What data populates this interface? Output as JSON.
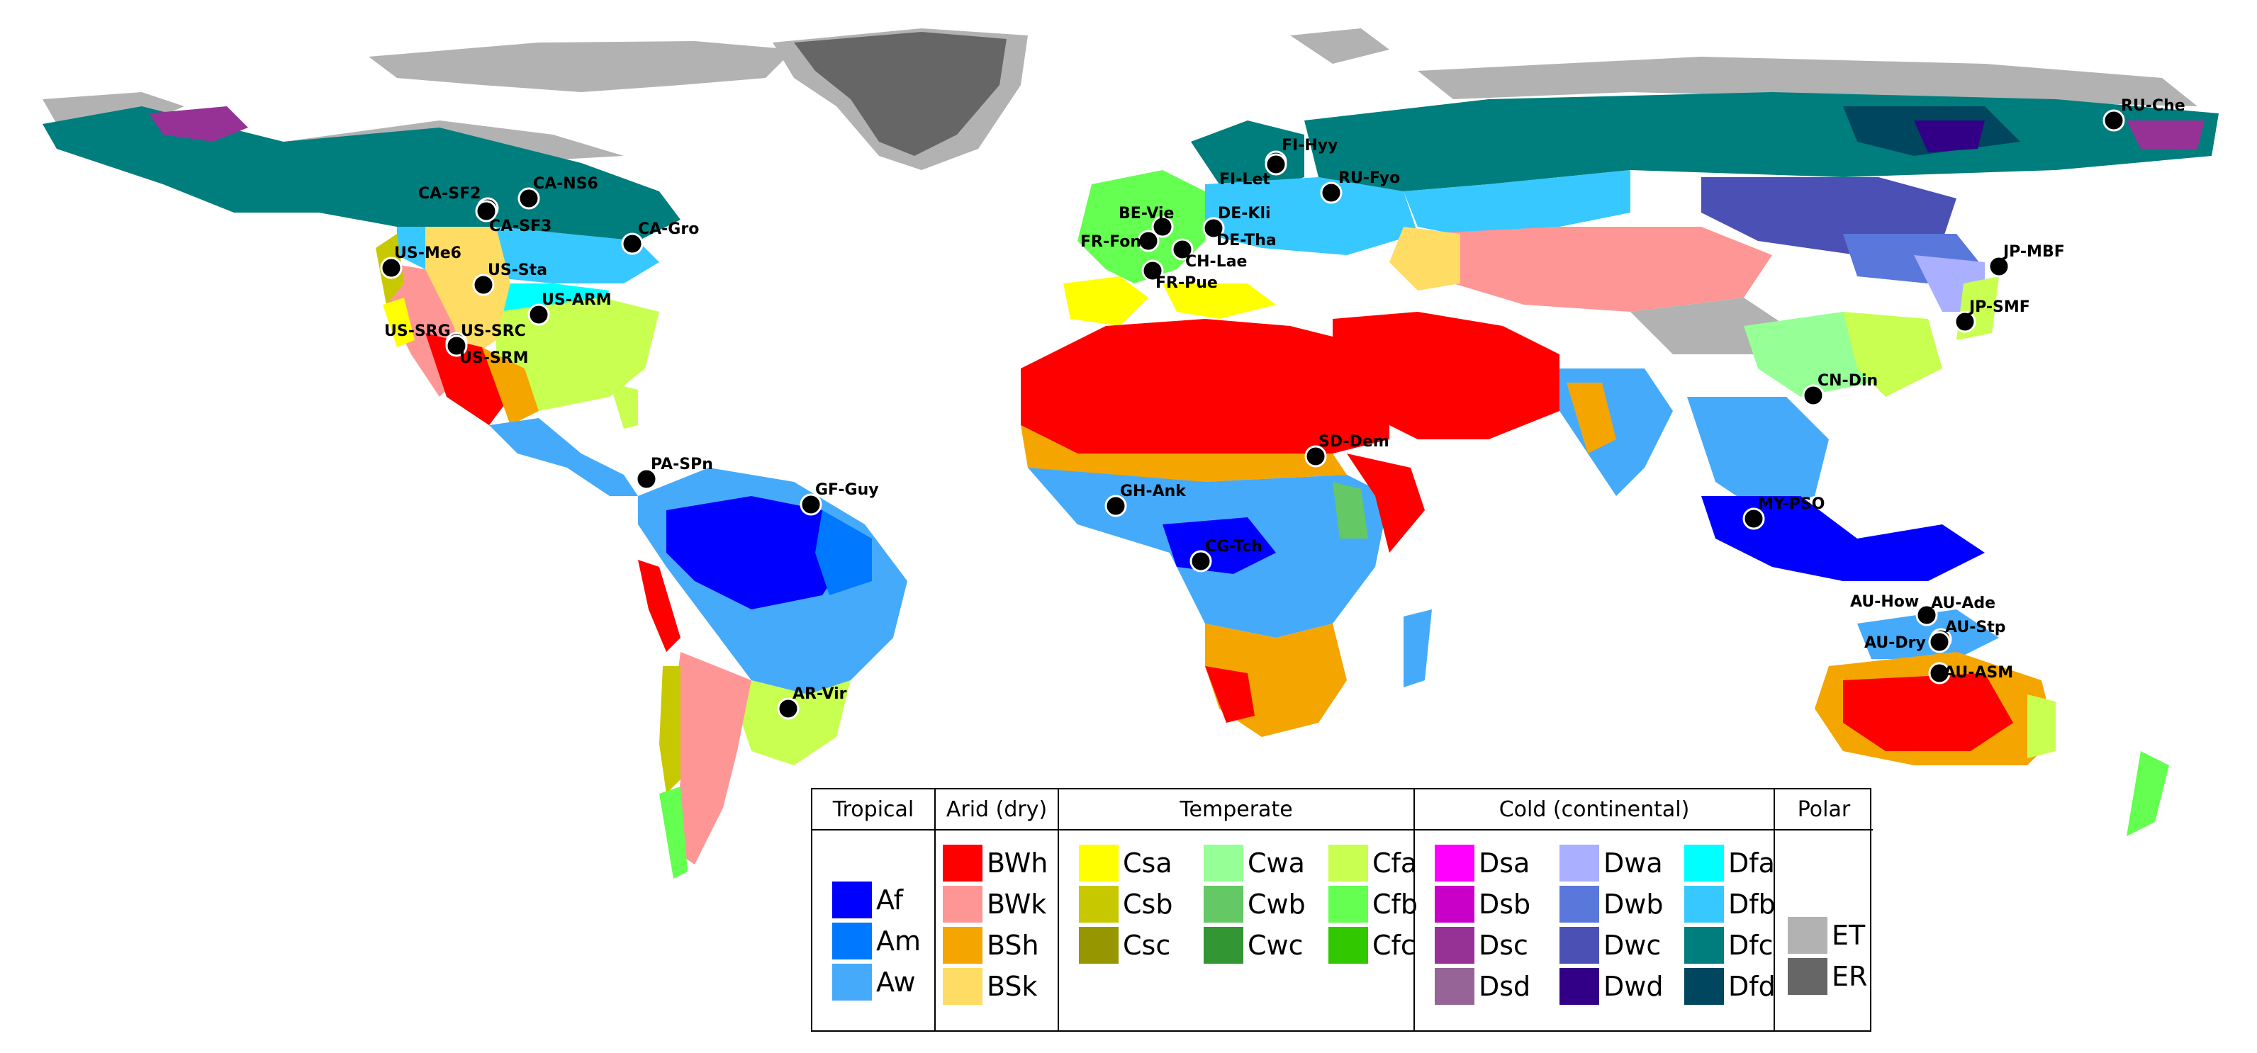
{
  "legend": {
    "groups": [
      {
        "title": "Tropical",
        "items": [
          {
            "code": "Af",
            "color": "#0000ff"
          },
          {
            "code": "Am",
            "color": "#0078ff"
          },
          {
            "code": "Aw",
            "color": "#46aafa"
          }
        ]
      },
      {
        "title": "Arid (dry)",
        "items": [
          {
            "code": "BWh",
            "color": "#ff0000"
          },
          {
            "code": "BWk",
            "color": "#ff9696"
          },
          {
            "code": "BSh",
            "color": "#f5a500"
          },
          {
            "code": "BSk",
            "color": "#ffdc64"
          }
        ]
      },
      {
        "title": "Temperate",
        "items": [
          {
            "code": "Csa",
            "color": "#ffff00"
          },
          {
            "code": "Csb",
            "color": "#c8c800"
          },
          {
            "code": "Csc",
            "color": "#969600"
          },
          {
            "code": "Cwa",
            "color": "#96ff96"
          },
          {
            "code": "Cwb",
            "color": "#64c864"
          },
          {
            "code": "Cwc",
            "color": "#329632"
          },
          {
            "code": "Cfa",
            "color": "#c8ff50"
          },
          {
            "code": "Cfb",
            "color": "#64ff50"
          },
          {
            "code": "Cfc",
            "color": "#32c800"
          }
        ]
      },
      {
        "title": "Cold (continental)",
        "items": [
          {
            "code": "Dsa",
            "color": "#ff00ff"
          },
          {
            "code": "Dsb",
            "color": "#c800c8"
          },
          {
            "code": "Dsc",
            "color": "#963296"
          },
          {
            "code": "Dsd",
            "color": "#966496"
          },
          {
            "code": "Dwa",
            "color": "#aaafff"
          },
          {
            "code": "Dwb",
            "color": "#5a78dc"
          },
          {
            "code": "Dwc",
            "color": "#4b50b4"
          },
          {
            "code": "Dwd",
            "color": "#320087"
          },
          {
            "code": "Dfa",
            "color": "#00ffff"
          },
          {
            "code": "Dfb",
            "color": "#37c8ff"
          },
          {
            "code": "Dfc",
            "color": "#007d7d"
          },
          {
            "code": "Dfd",
            "color": "#00465f"
          }
        ]
      },
      {
        "title": "Polar",
        "items": [
          {
            "code": "ET",
            "color": "#b2b2b2"
          },
          {
            "code": "ER",
            "color": "#666666"
          }
        ]
      }
    ]
  },
  "sites": [
    {
      "name": "RU-Che"
    },
    {
      "name": "FI-Hyy"
    },
    {
      "name": "FI-Let"
    },
    {
      "name": "RU-Fyo"
    },
    {
      "name": "CA-SF2"
    },
    {
      "name": "CA-NS6"
    },
    {
      "name": "CA-SF3"
    },
    {
      "name": "CA-Gro"
    },
    {
      "name": "BE-Vie"
    },
    {
      "name": "DE-Kli"
    },
    {
      "name": "DE-Tha"
    },
    {
      "name": "FR-Fon"
    },
    {
      "name": "CH-Lae"
    },
    {
      "name": "FR-Pue"
    },
    {
      "name": "US-Me6"
    },
    {
      "name": "US-Sta"
    },
    {
      "name": "US-ARM"
    },
    {
      "name": "US-SRG"
    },
    {
      "name": "US-SRC"
    },
    {
      "name": "US-SRM"
    },
    {
      "name": "JP-MBF"
    },
    {
      "name": "JP-SMF"
    },
    {
      "name": "CN-Din"
    },
    {
      "name": "SD-Dem"
    },
    {
      "name": "PA-SPn"
    },
    {
      "name": "GF-Guy"
    },
    {
      "name": "GH-Ank"
    },
    {
      "name": "CG-Tch"
    },
    {
      "name": "MY-PSO"
    },
    {
      "name": "AU-How"
    },
    {
      "name": "AU-Ade"
    },
    {
      "name": "AU-Stp"
    },
    {
      "name": "AU-Dry"
    },
    {
      "name": "AU-ASM"
    },
    {
      "name": "AR-Vir"
    }
  ]
}
